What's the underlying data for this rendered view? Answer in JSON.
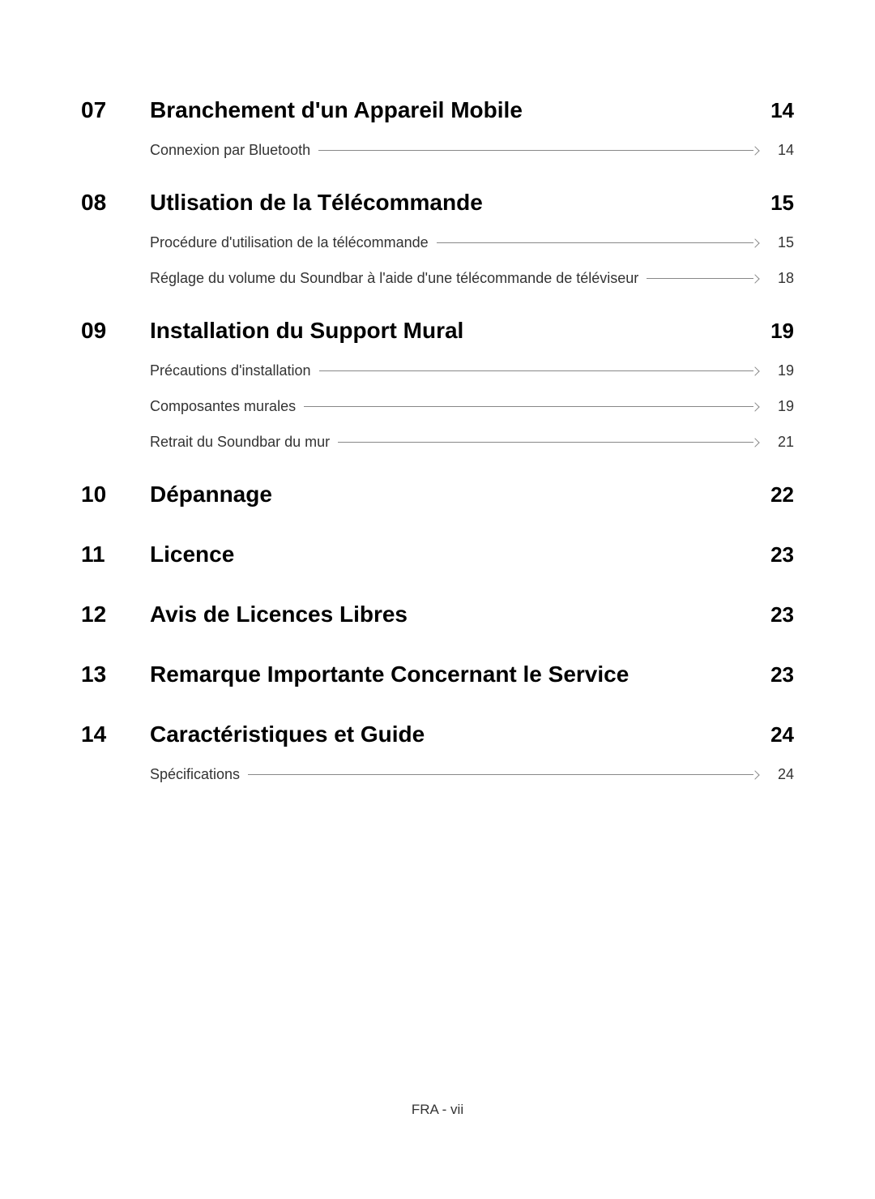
{
  "footer": "FRA - vii",
  "sections": [
    {
      "num": "07",
      "title": "Branchement d'un Appareil Mobile",
      "page": "14",
      "subs": [
        {
          "label": "Connexion par Bluetooth",
          "page": "14"
        }
      ]
    },
    {
      "num": "08",
      "title": "Utlisation de la Télécommande",
      "page": "15",
      "subs": [
        {
          "label": "Procédure d'utilisation de la télécommande",
          "page": "15"
        },
        {
          "label": "Réglage du volume du Soundbar à l'aide d'une télécommande de téléviseur",
          "page": "18"
        }
      ]
    },
    {
      "num": "09",
      "title": "Installation du Support Mural",
      "page": "19",
      "subs": [
        {
          "label": "Précautions d'installation",
          "page": "19"
        },
        {
          "label": "Composantes murales",
          "page": "19"
        },
        {
          "label": "Retrait du Soundbar du mur",
          "page": "21"
        }
      ]
    },
    {
      "num": "10",
      "title": "Dépannage",
      "page": "22",
      "subs": []
    },
    {
      "num": "11",
      "title": "Licence",
      "page": "23",
      "subs": []
    },
    {
      "num": "12",
      "title": "Avis de Licences Libres",
      "page": "23",
      "subs": []
    },
    {
      "num": "13",
      "title": "Remarque Importante Concernant le Service",
      "page": "23",
      "subs": []
    },
    {
      "num": "14",
      "title": "Caractéristiques et Guide",
      "page": "24",
      "subs": [
        {
          "label": "Spécifications",
          "page": "24"
        }
      ]
    }
  ]
}
